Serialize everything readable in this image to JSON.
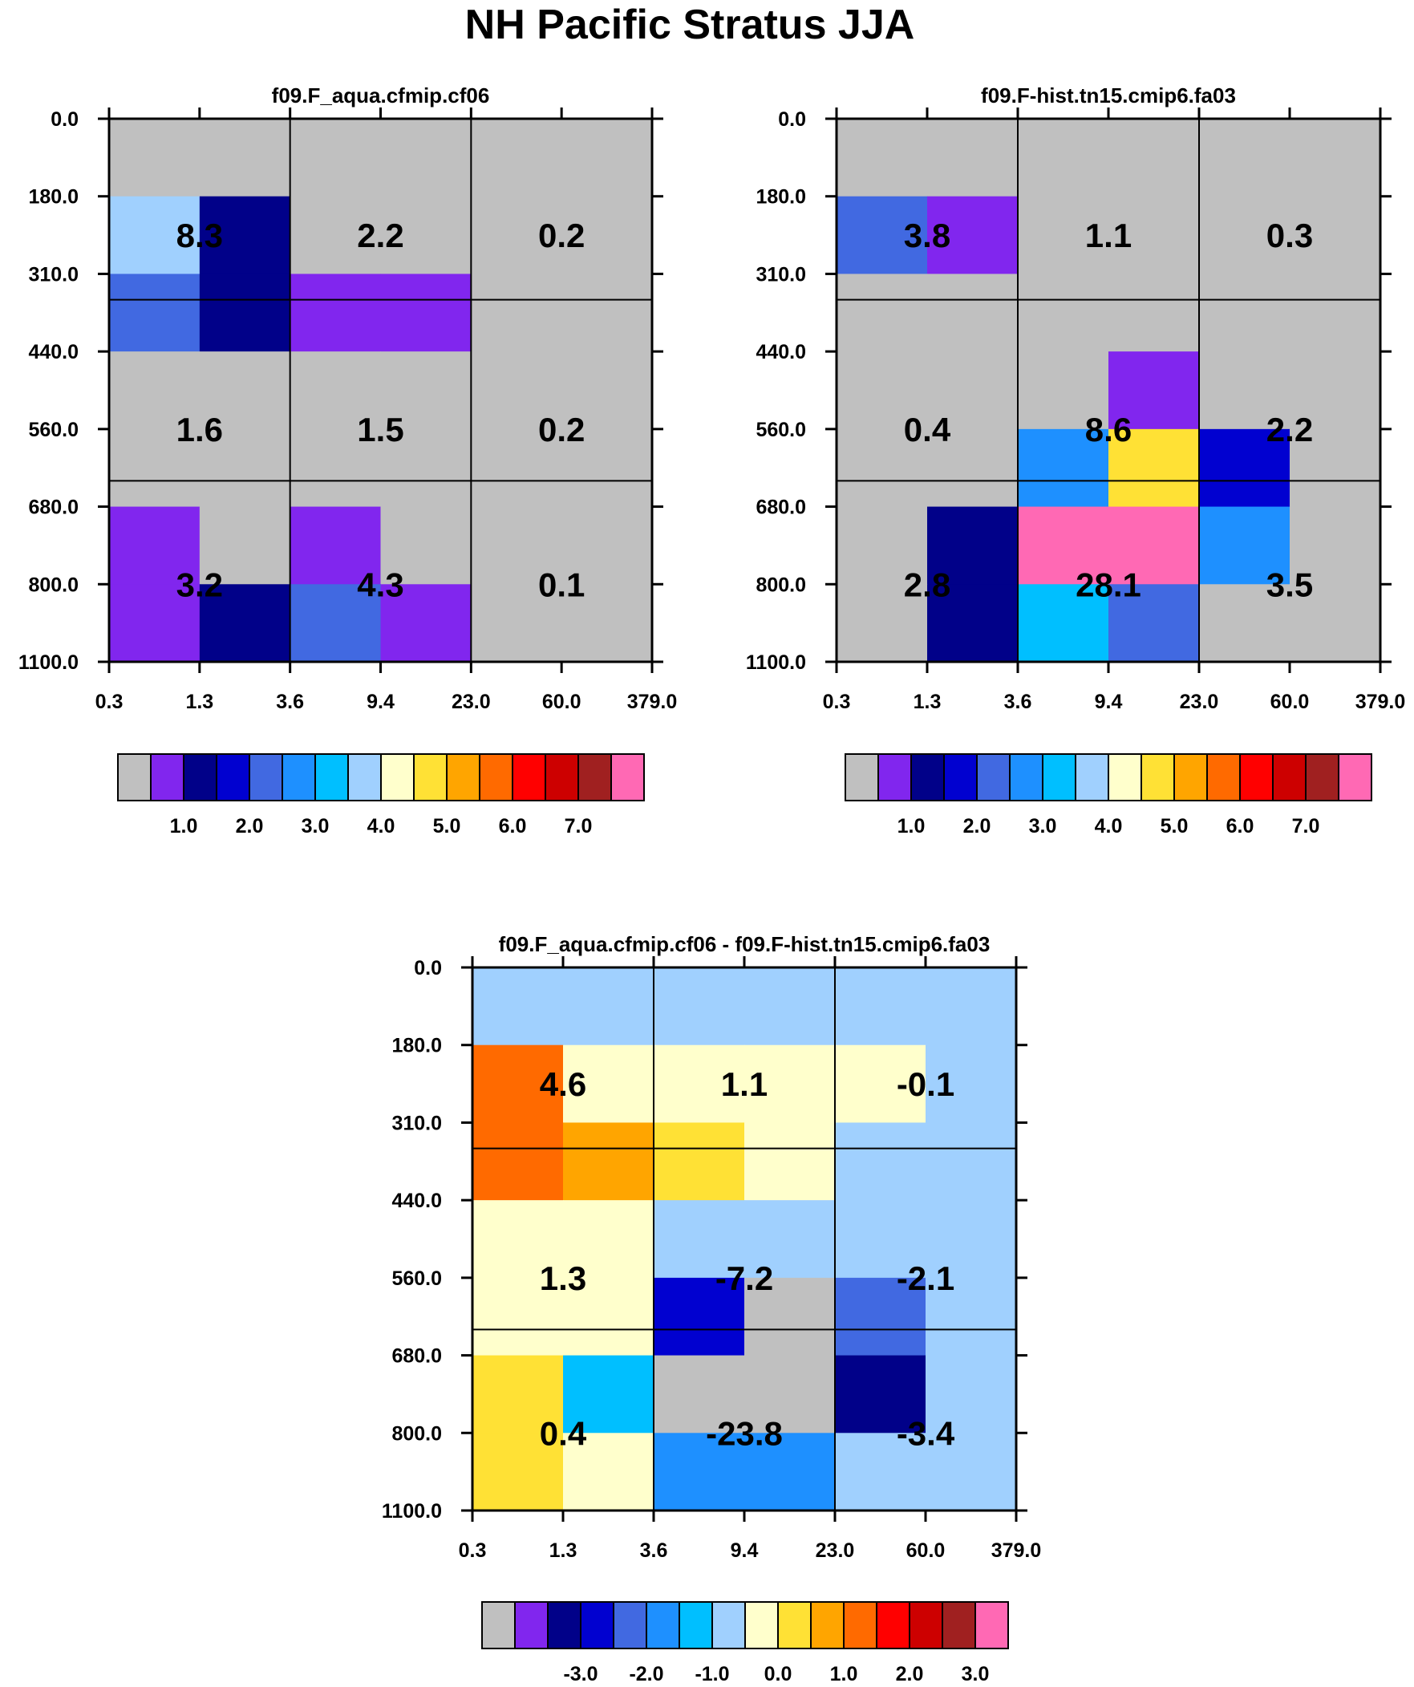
{
  "title": "NH Pacific Stratus JJA",
  "palette": {
    "main": [
      "#c0c0c0",
      "#8126ee",
      "#010189",
      "#0101d0",
      "#4169e1",
      "#1e90ff",
      "#00bfff",
      "#a0d0fe",
      "#ffffcc",
      "#ffe135",
      "#ffa500",
      "#ff6a00",
      "#ff0000",
      "#cd0000",
      "#a02020",
      "#ff69b4"
    ],
    "diff": [
      "#c0c0c0",
      "#8126ee",
      "#010189",
      "#0101d0",
      "#4169e1",
      "#1e90ff",
      "#00bfff",
      "#a0d0fe",
      "#ffffcc",
      "#ffe135",
      "#ffa500",
      "#ff6a00",
      "#ff0000",
      "#cd0000",
      "#a02020",
      "#ff69b4"
    ]
  },
  "chart_data": [
    {
      "type": "heatmap",
      "title": "f09.F_aqua.cfmip.cf06",
      "x_ticks": [
        "0.3",
        "1.3",
        "3.6",
        "9.4",
        "23.0",
        "60.0",
        "379.0"
      ],
      "y_ticks": [
        "0.0",
        "180.0",
        "310.0",
        "440.0",
        "560.0",
        "680.0",
        "800.0",
        "1100.0"
      ],
      "cell_colors": [
        [
          0,
          0,
          0,
          0,
          0,
          0
        ],
        [
          7,
          2,
          0,
          0,
          0,
          0
        ],
        [
          4,
          2,
          1,
          1,
          0,
          0
        ],
        [
          0,
          0,
          0,
          0,
          0,
          0
        ],
        [
          0,
          0,
          0,
          0,
          0,
          0
        ],
        [
          1,
          0,
          1,
          0,
          0,
          0
        ],
        [
          1,
          2,
          4,
          1,
          0,
          0
        ]
      ],
      "block_values": [
        [
          "8.3",
          "2.2",
          "0.2"
        ],
        [
          "1.6",
          "1.5",
          "0.2"
        ],
        [
          "3.2",
          "4.3",
          "0.1"
        ]
      ],
      "colorbar_labels": [
        "1.0",
        "2.0",
        "3.0",
        "4.0",
        "5.0",
        "6.0",
        "7.0"
      ]
    },
    {
      "type": "heatmap",
      "title": "f09.F-hist.tn15.cmip6.fa03",
      "x_ticks": [
        "0.3",
        "1.3",
        "3.6",
        "9.4",
        "23.0",
        "60.0",
        "379.0"
      ],
      "y_ticks": [
        "0.0",
        "180.0",
        "310.0",
        "440.0",
        "560.0",
        "680.0",
        "800.0",
        "1100.0"
      ],
      "cell_colors": [
        [
          0,
          0,
          0,
          0,
          0,
          0
        ],
        [
          4,
          1,
          0,
          0,
          0,
          0
        ],
        [
          0,
          0,
          0,
          0,
          0,
          0
        ],
        [
          0,
          0,
          0,
          1,
          0,
          0
        ],
        [
          0,
          0,
          5,
          9,
          3,
          0
        ],
        [
          0,
          2,
          15,
          15,
          5,
          0
        ],
        [
          0,
          2,
          6,
          4,
          0,
          0
        ]
      ],
      "block_values": [
        [
          "3.8",
          "1.1",
          "0.3"
        ],
        [
          "0.4",
          "8.6",
          "2.2"
        ],
        [
          "2.8",
          "28.1",
          "3.5"
        ]
      ],
      "colorbar_labels": [
        "1.0",
        "2.0",
        "3.0",
        "4.0",
        "5.0",
        "6.0",
        "7.0"
      ]
    },
    {
      "type": "heatmap",
      "title": "f09.F_aqua.cfmip.cf06 - f09.F-hist.tn15.cmip6.fa03",
      "x_ticks": [
        "0.3",
        "1.3",
        "3.6",
        "9.4",
        "23.0",
        "60.0",
        "379.0"
      ],
      "y_ticks": [
        "0.0",
        "180.0",
        "310.0",
        "440.0",
        "560.0",
        "680.0",
        "800.0",
        "1100.0"
      ],
      "cell_colors": [
        [
          7,
          7,
          7,
          7,
          7,
          7
        ],
        [
          11,
          8,
          8,
          8,
          8,
          7
        ],
        [
          11,
          10,
          9,
          8,
          7,
          7
        ],
        [
          8,
          8,
          7,
          7,
          7,
          7
        ],
        [
          8,
          8,
          3,
          0,
          4,
          7
        ],
        [
          9,
          6,
          0,
          0,
          2,
          7
        ],
        [
          9,
          8,
          5,
          5,
          7,
          7
        ]
      ],
      "block_values": [
        [
          "4.6",
          "1.1",
          "-0.1"
        ],
        [
          "1.3",
          "-7.2",
          "-2.1"
        ],
        [
          "0.4",
          "-23.8",
          "-3.4"
        ]
      ],
      "colorbar_labels": [
        "-3.0",
        "-2.0",
        "-1.0",
        "0.0",
        "1.0",
        "2.0",
        "3.0"
      ]
    }
  ]
}
